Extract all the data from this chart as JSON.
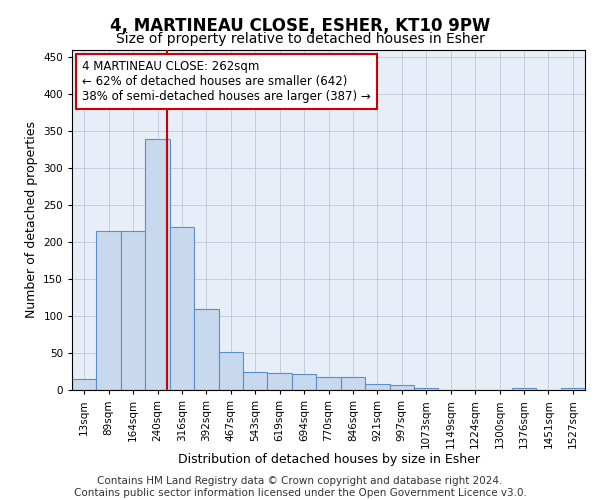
{
  "title": "4, MARTINEAU CLOSE, ESHER, KT10 9PW",
  "subtitle": "Size of property relative to detached houses in Esher",
  "xlabel": "Distribution of detached houses by size in Esher",
  "ylabel": "Number of detached properties",
  "bin_labels": [
    "13sqm",
    "89sqm",
    "164sqm",
    "240sqm",
    "316sqm",
    "392sqm",
    "467sqm",
    "543sqm",
    "619sqm",
    "694sqm",
    "770sqm",
    "846sqm",
    "921sqm",
    "997sqm",
    "1073sqm",
    "1149sqm",
    "1224sqm",
    "1300sqm",
    "1376sqm",
    "1451sqm",
    "1527sqm"
  ],
  "bar_heights": [
    15,
    215,
    215,
    340,
    220,
    110,
    52,
    25,
    23,
    22,
    18,
    17,
    8,
    7,
    3,
    0,
    0,
    0,
    3,
    0,
    3
  ],
  "bar_color": "#c9d9ed",
  "bar_edge_color": "#5b8fc9",
  "vline_x": 3.38,
  "vline_color": "#cc0000",
  "annotation_line1": "4 MARTINEAU CLOSE: 262sqm",
  "annotation_line2": "← 62% of detached houses are smaller (642)",
  "annotation_line3": "38% of semi-detached houses are larger (387) →",
  "annotation_box_color": "#ffffff",
  "annotation_box_edge": "#cc0000",
  "ylim": [
    0,
    460
  ],
  "yticks": [
    0,
    50,
    100,
    150,
    200,
    250,
    300,
    350,
    400,
    450
  ],
  "footer_text": "Contains HM Land Registry data © Crown copyright and database right 2024.\nContains public sector information licensed under the Open Government Licence v3.0.",
  "title_fontsize": 12,
  "subtitle_fontsize": 10,
  "axis_label_fontsize": 9,
  "tick_fontsize": 7.5,
  "annotation_fontsize": 8.5,
  "footer_fontsize": 7.5,
  "bg_color": "#e8eef8"
}
